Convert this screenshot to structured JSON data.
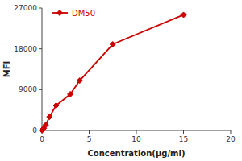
{
  "chart_data": {
    "type": "line",
    "x": [
      0.0,
      0.1,
      0.2,
      0.4,
      0.8,
      1.5,
      3.0,
      4.0,
      7.5,
      15.0
    ],
    "series": [
      {
        "name": "DM50",
        "color": "#CC0000",
        "marker": "diamond",
        "values": [
          50,
          200,
          500,
          1200,
          3000,
          5500,
          8000,
          11000,
          19000,
          25500
        ]
      }
    ],
    "xlabel": "Concentration(μg/ml)",
    "ylabel": "MFI",
    "xlim": [
      0,
      20
    ],
    "ylim": [
      0,
      27000
    ],
    "xticks": [
      0,
      5,
      10,
      15,
      20
    ],
    "yticks": [
      0,
      9000,
      18000,
      27000
    ],
    "grid": false,
    "legend": "upper left"
  }
}
